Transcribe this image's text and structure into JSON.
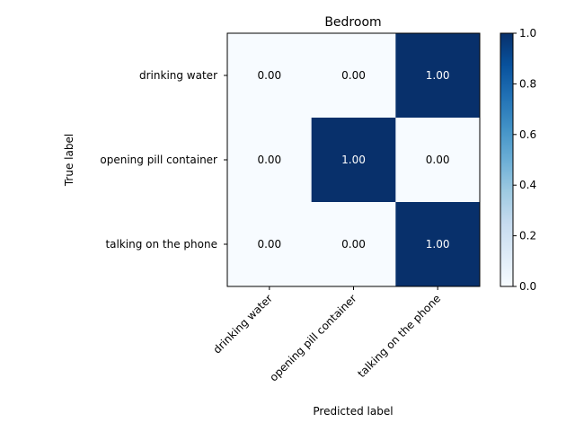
{
  "chart_data": {
    "type": "heatmap",
    "title": "Bedroom",
    "xlabel": "Predicted label",
    "ylabel": "True label",
    "x_categories": [
      "drinking water",
      "opening pill container",
      "talking on the phone"
    ],
    "y_categories": [
      "drinking water",
      "opening pill container",
      "talking on the phone"
    ],
    "values": [
      [
        0.0,
        0.0,
        1.0
      ],
      [
        0.0,
        1.0,
        0.0
      ],
      [
        0.0,
        0.0,
        1.0
      ]
    ],
    "value_labels": [
      [
        "0.00",
        "0.00",
        "1.00"
      ],
      [
        "0.00",
        "1.00",
        "0.00"
      ],
      [
        "0.00",
        "0.00",
        "1.00"
      ]
    ],
    "colorbar": {
      "range": [
        0.0,
        1.0
      ],
      "ticks": [
        "0.0",
        "0.2",
        "0.4",
        "0.6",
        "0.8",
        "1.0"
      ]
    },
    "colormap": "Blues",
    "colors": {
      "low": "#f7fbff",
      "high": "#08306b"
    }
  }
}
